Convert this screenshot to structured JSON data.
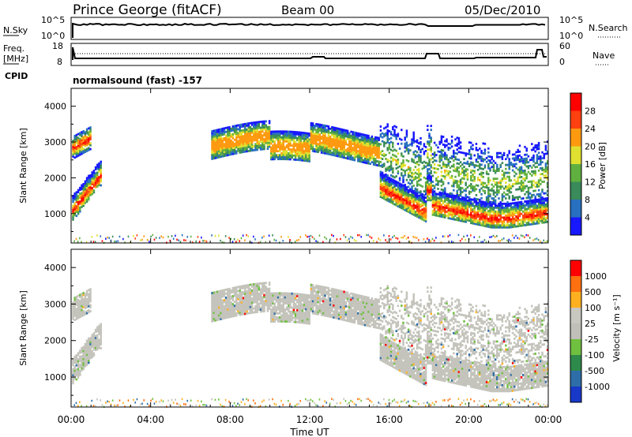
{
  "header": {
    "station": "Prince George (fitACF)",
    "beam": "Beam 00",
    "date": "05/Dec/2010"
  },
  "noise_panel": {
    "left_label": "N.Sky",
    "left_ticks": [
      "10^5",
      "10^0"
    ],
    "right_label": "N.Search",
    "right_ticks": [
      "10^5",
      "10^0"
    ]
  },
  "freq_panel": {
    "left_label_1": "Freq.",
    "left_label_2": "[MHz]",
    "left_ticks": [
      "18",
      "8"
    ],
    "right_label": "Nave",
    "right_ticks": [
      "60",
      "0"
    ]
  },
  "cpid": {
    "label": "CPID",
    "mode": "normalsound (fast) -157"
  },
  "chart_data": [
    {
      "type": "heatmap",
      "ylabel": "Slant Range [km]",
      "xlabel": "",
      "x_ticks": [
        "00:00",
        "04:00",
        "08:00",
        "12:00",
        "16:00",
        "20:00",
        "00:00"
      ],
      "y_ticks": [
        "1000",
        "2000",
        "3000",
        "4000"
      ],
      "ylim": [
        180,
        4500
      ],
      "xlim_hours": [
        0,
        24
      ],
      "colorbar": {
        "label": "Power [dB]",
        "ticks": [
          "4",
          "8",
          "12",
          "16",
          "20",
          "24",
          "28"
        ],
        "colors": [
          "#1818ff",
          "#2870c0",
          "#3a8a5a",
          "#60b040",
          "#e0e030",
          "#ff9a10",
          "#ff4010",
          "#ff0000"
        ]
      },
      "echo_regions": [
        {
          "t0": 0.1,
          "t1": 1.4,
          "r_low": 1000,
          "r_high": 2300
        },
        {
          "t0": 0.2,
          "t1": 1.0,
          "r_low": 2500,
          "r_high": 3500
        },
        {
          "t0": 7.0,
          "t1": 15.5,
          "r_low": 2300,
          "r_high": 3400
        },
        {
          "t0": 15.5,
          "t1": 24.0,
          "r_low": 700,
          "r_high": 3500
        }
      ]
    },
    {
      "type": "heatmap",
      "ylabel": "Slant Range [km]",
      "xlabel": "Time UT",
      "x_ticks": [
        "00:00",
        "04:00",
        "08:00",
        "12:00",
        "16:00",
        "20:00",
        "00:00"
      ],
      "y_ticks": [
        "1000",
        "2000",
        "3000",
        "4000"
      ],
      "ylim": [
        180,
        4500
      ],
      "xlim_hours": [
        0,
        24
      ],
      "colorbar": {
        "label": "Velocity [m s⁻¹]",
        "ticks": [
          "1000",
          "500",
          "100",
          "25",
          "-25",
          "-100",
          "-500",
          "-1000"
        ],
        "colors": [
          "#1838c8",
          "#2e6ea8",
          "#2e8a4a",
          "#70c040",
          "#c0c0b8",
          "#c8c8c0",
          "#ffb020",
          "#ff7010",
          "#ff0000"
        ]
      }
    }
  ]
}
